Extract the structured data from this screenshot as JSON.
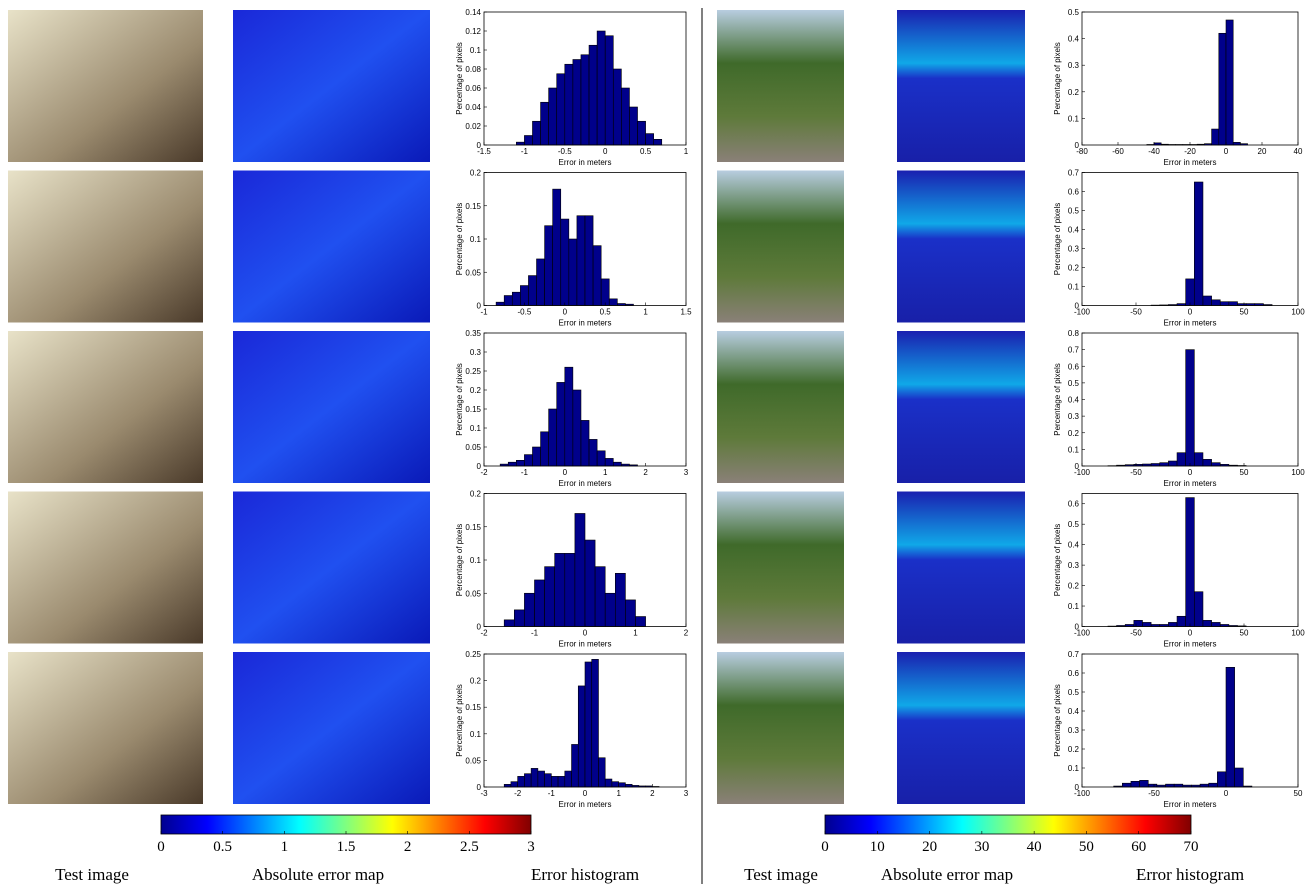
{
  "chart_data": [
    {
      "type": "histogram",
      "xlabel": "Error in meters",
      "ylabel": "Percentage of pixels",
      "color": "#00008b",
      "bins": [
        -1.1,
        -1,
        -0.9,
        -0.8,
        -0.7,
        -0.6,
        -0.5,
        -0.4,
        -0.3,
        -0.2,
        -0.1,
        0,
        0.1,
        0.2,
        0.3,
        0.4,
        0.5,
        0.6,
        0.7
      ],
      "values": [
        0.003,
        0.01,
        0.025,
        0.045,
        0.06,
        0.075,
        0.085,
        0.09,
        0.095,
        0.105,
        0.12,
        0.115,
        0.08,
        0.06,
        0.04,
        0.025,
        0.012,
        0.006
      ],
      "xlim": [
        -1.5,
        1
      ],
      "xticks": [
        -1.5,
        -1,
        -0.5,
        0,
        0.5,
        1
      ],
      "ylim": [
        0,
        0.14
      ],
      "yticks": [
        0,
        0.02,
        0.04,
        0.06,
        0.08,
        0.1,
        0.12,
        0.14
      ]
    },
    {
      "type": "histogram",
      "xlabel": "Error in meters",
      "ylabel": "Percentage of pixels",
      "color": "#00008b",
      "bins": [
        -0.85,
        -0.75,
        -0.65,
        -0.55,
        -0.45,
        -0.35,
        -0.25,
        -0.15,
        -0.05,
        0.05,
        0.15,
        0.25,
        0.35,
        0.45,
        0.55,
        0.65,
        0.75,
        0.85
      ],
      "values": [
        0.005,
        0.015,
        0.02,
        0.03,
        0.045,
        0.07,
        0.12,
        0.175,
        0.13,
        0.1,
        0.135,
        0.135,
        0.09,
        0.04,
        0.01,
        0.003,
        0.002
      ],
      "xlim": [
        -1,
        1.5
      ],
      "xticks": [
        -1,
        -0.5,
        0,
        0.5,
        1,
        1.5
      ],
      "ylim": [
        0,
        0.2
      ],
      "yticks": [
        0,
        0.05,
        0.1,
        0.15,
        0.2
      ]
    },
    {
      "type": "histogram",
      "xlabel": "Error in meters",
      "ylabel": "Percentage of pixels",
      "color": "#00008b",
      "bins": [
        -1.6,
        -1.4,
        -1.2,
        -1,
        -0.8,
        -0.6,
        -0.4,
        -0.2,
        0,
        0.2,
        0.4,
        0.6,
        0.8,
        1,
        1.2,
        1.4,
        1.6,
        1.8
      ],
      "values": [
        0.005,
        0.01,
        0.015,
        0.03,
        0.05,
        0.09,
        0.15,
        0.22,
        0.26,
        0.2,
        0.12,
        0.07,
        0.04,
        0.02,
        0.01,
        0.005,
        0.003
      ],
      "xlim": [
        -2,
        3
      ],
      "xticks": [
        -2,
        -1,
        0,
        1,
        2,
        3
      ],
      "ylim": [
        0,
        0.35
      ],
      "yticks": [
        0,
        0.05,
        0.1,
        0.15,
        0.2,
        0.25,
        0.3,
        0.35
      ]
    },
    {
      "type": "histogram",
      "xlabel": "Error in meters",
      "ylabel": "Percentage of pixels",
      "color": "#00008b",
      "bins": [
        -1.6,
        -1.4,
        -1.2,
        -1,
        -0.8,
        -0.6,
        -0.4,
        -0.2,
        0,
        0.2,
        0.4,
        0.6,
        0.8,
        1,
        1.2
      ],
      "values": [
        0.01,
        0.025,
        0.05,
        0.07,
        0.09,
        0.11,
        0.11,
        0.17,
        0.13,
        0.09,
        0.05,
        0.08,
        0.04,
        0.015
      ],
      "xlim": [
        -2,
        2
      ],
      "xticks": [
        -2,
        -1,
        0,
        1,
        2
      ],
      "ylim": [
        0,
        0.2
      ],
      "yticks": [
        0,
        0.05,
        0.1,
        0.15,
        0.2
      ]
    },
    {
      "type": "histogram",
      "xlabel": "Error in meters",
      "ylabel": "Percentage of pixels",
      "color": "#00008b",
      "bins": [
        -2.4,
        -2.2,
        -2,
        -1.8,
        -1.6,
        -1.4,
        -1.2,
        -1,
        -0.8,
        -0.6,
        -0.4,
        -0.2,
        0,
        0.2,
        0.4,
        0.6,
        0.8,
        1,
        1.2,
        1.4,
        1.6,
        1.8,
        2,
        2.2
      ],
      "values": [
        0.005,
        0.01,
        0.02,
        0.025,
        0.035,
        0.03,
        0.025,
        0.02,
        0.02,
        0.03,
        0.08,
        0.19,
        0.235,
        0.24,
        0.055,
        0.015,
        0.01,
        0.008,
        0.005,
        0.003,
        0.002,
        0.002,
        0.001
      ],
      "xlim": [
        -3,
        3
      ],
      "xticks": [
        -3,
        -2,
        -1,
        0,
        1,
        2,
        3
      ],
      "ylim": [
        0,
        0.25
      ],
      "yticks": [
        0,
        0.05,
        0.1,
        0.15,
        0.2,
        0.25
      ]
    },
    {
      "type": "histogram",
      "xlabel": "Error in meters",
      "ylabel": "Percentage of pixels",
      "color": "#00008b",
      "bins": [
        -44,
        -40,
        -36,
        -32,
        -28,
        -24,
        -20,
        -16,
        -12,
        -8,
        -4,
        0,
        4,
        8,
        12
      ],
      "values": [
        0.002,
        0.008,
        0.003,
        0.002,
        0.002,
        0.002,
        0.002,
        0.003,
        0.005,
        0.06,
        0.42,
        0.47,
        0.01,
        0.005
      ],
      "xlim": [
        -80,
        40
      ],
      "xticks": [
        -80,
        -60,
        -40,
        -20,
        0,
        20,
        40
      ],
      "ylim": [
        0,
        0.5
      ],
      "yticks": [
        0,
        0.1,
        0.2,
        0.3,
        0.4,
        0.5
      ]
    },
    {
      "type": "histogram",
      "xlabel": "Error in meters",
      "ylabel": "Percentage of pixels",
      "color": "#00008b",
      "bins": [
        -36,
        -28,
        -20,
        -12,
        -4,
        4,
        12,
        20,
        28,
        36,
        44,
        52,
        60,
        68,
        76
      ],
      "values": [
        0.002,
        0.003,
        0.005,
        0.01,
        0.14,
        0.65,
        0.05,
        0.03,
        0.02,
        0.02,
        0.01,
        0.01,
        0.01,
        0.005
      ],
      "xlim": [
        -100,
        100
      ],
      "xticks": [
        -100,
        -50,
        0,
        50,
        100
      ],
      "ylim": [
        0,
        0.7
      ],
      "yticks": [
        0,
        0.1,
        0.2,
        0.3,
        0.4,
        0.5,
        0.6,
        0.7
      ]
    },
    {
      "type": "histogram",
      "xlabel": "Error in meters",
      "ylabel": "Percentage of pixels",
      "color": "#00008b",
      "bins": [
        -76,
        -68,
        -60,
        -52,
        -44,
        -36,
        -28,
        -20,
        -12,
        -4,
        4,
        12,
        20,
        28,
        36,
        44,
        52
      ],
      "values": [
        0.002,
        0.005,
        0.008,
        0.01,
        0.012,
        0.015,
        0.02,
        0.03,
        0.08,
        0.7,
        0.08,
        0.04,
        0.02,
        0.01,
        0.005,
        0.003
      ],
      "xlim": [
        -100,
        100
      ],
      "xticks": [
        -100,
        -50,
        0,
        50,
        100
      ],
      "ylim": [
        0,
        0.8
      ],
      "yticks": [
        0,
        0.1,
        0.2,
        0.3,
        0.4,
        0.5,
        0.6,
        0.7,
        0.8
      ]
    },
    {
      "type": "histogram",
      "xlabel": "Error in meters",
      "ylabel": "Percentage of pixels",
      "color": "#00008b",
      "bins": [
        -76,
        -68,
        -60,
        -52,
        -44,
        -36,
        -28,
        -20,
        -12,
        -4,
        4,
        12,
        20,
        28,
        36,
        44,
        52
      ],
      "values": [
        0.002,
        0.005,
        0.01,
        0.03,
        0.02,
        0.01,
        0.01,
        0.02,
        0.05,
        0.63,
        0.17,
        0.03,
        0.02,
        0.01,
        0.005,
        0.003
      ],
      "xlim": [
        -100,
        100
      ],
      "xticks": [
        -100,
        -50,
        0,
        50,
        100
      ],
      "ylim": [
        0,
        0.65
      ],
      "yticks": [
        0,
        0.1,
        0.2,
        0.3,
        0.4,
        0.5,
        0.6
      ]
    },
    {
      "type": "histogram",
      "xlabel": "Error in meters",
      "ylabel": "Percentage of pixels",
      "color": "#00008b",
      "bins": [
        -78,
        -72,
        -66,
        -60,
        -54,
        -48,
        -42,
        -36,
        -30,
        -24,
        -18,
        -12,
        -6,
        0,
        6,
        12,
        18
      ],
      "values": [
        0.005,
        0.02,
        0.03,
        0.035,
        0.015,
        0.01,
        0.015,
        0.015,
        0.01,
        0.01,
        0.015,
        0.02,
        0.08,
        0.63,
        0.1,
        0.005
      ],
      "xlim": [
        -100,
        50
      ],
      "xticks": [
        -100,
        -50,
        0,
        50
      ],
      "ylim": [
        0,
        0.7
      ],
      "yticks": [
        0,
        0.1,
        0.2,
        0.3,
        0.4,
        0.5,
        0.6,
        0.7
      ]
    }
  ],
  "colorbars": [
    {
      "lim": [
        0,
        3
      ],
      "ticks": [
        0,
        0.5,
        1,
        1.5,
        2,
        2.5,
        3
      ]
    },
    {
      "lim": [
        0,
        70
      ],
      "ticks": [
        0,
        10,
        20,
        30,
        40,
        50,
        60,
        70
      ]
    }
  ],
  "column_labels": [
    [
      "Test image",
      "Absolute error map",
      "Error histogram"
    ],
    [
      "Test image",
      "Absolute error map",
      "Error histogram"
    ]
  ]
}
